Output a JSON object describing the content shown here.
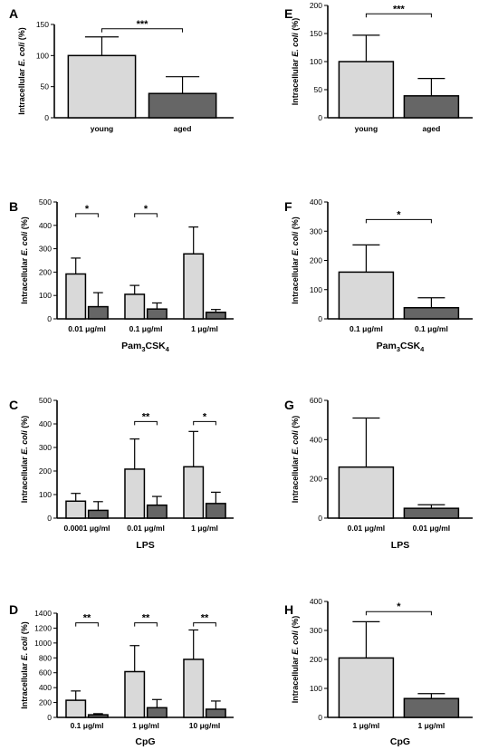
{
  "colors": {
    "young": "#d9d9d9",
    "aged": "#666666",
    "axis": "#000000"
  },
  "chart_data": [
    {
      "panel": "A",
      "type": "bar",
      "ylabel": "Intracellular E. coli (%)",
      "ylim": [
        0,
        150
      ],
      "yticks": [
        0,
        50,
        100,
        150
      ],
      "categories": [
        "young",
        "aged"
      ],
      "xlabel": "",
      "bars": [
        {
          "v": 100,
          "e": 30,
          "c": "young"
        },
        {
          "v": 39,
          "e": 27,
          "c": "aged"
        }
      ],
      "annotations": [
        {
          "from": 0,
          "to": 1,
          "label": "***"
        }
      ]
    },
    {
      "panel": "E",
      "type": "bar",
      "ylabel": "Intracellular E. coli (%)",
      "ylim": [
        0,
        200
      ],
      "yticks": [
        0,
        50,
        100,
        150,
        200
      ],
      "categories": [
        "young",
        "aged"
      ],
      "xlabel": "",
      "bars": [
        {
          "v": 100,
          "e": 47,
          "c": "young"
        },
        {
          "v": 39,
          "e": 31,
          "c": "aged"
        }
      ],
      "annotations": [
        {
          "from": 0,
          "to": 1,
          "label": "***"
        }
      ]
    },
    {
      "panel": "B",
      "type": "bar",
      "ylabel": "Intracellular E. coli (%)",
      "ylim": [
        0,
        500
      ],
      "yticks": [
        0,
        100,
        200,
        300,
        400,
        500
      ],
      "categories": [
        "0.01 μg/ml",
        "0.1 μg/ml",
        "1 μg/ml"
      ],
      "xlabel": "Pam",
      "xlabel_sub": "3",
      "xlabel_tail": "CSK",
      "xlabel_sub2": "4",
      "bars": [
        {
          "v": 192,
          "e": 68,
          "c": "young"
        },
        {
          "v": 52,
          "e": 60,
          "c": "aged"
        },
        {
          "v": 105,
          "e": 38,
          "c": "young"
        },
        {
          "v": 42,
          "e": 26,
          "c": "aged"
        },
        {
          "v": 278,
          "e": 115,
          "c": "young"
        },
        {
          "v": 28,
          "e": 12,
          "c": "aged"
        }
      ],
      "annotations": [
        {
          "from": 0,
          "to": 1,
          "label": "*"
        },
        {
          "from": 2,
          "to": 3,
          "label": "*"
        }
      ]
    },
    {
      "panel": "F",
      "type": "bar",
      "ylabel": "Intracellular E. coli (%)",
      "ylim": [
        0,
        400
      ],
      "yticks": [
        0,
        100,
        200,
        300,
        400
      ],
      "categories": [
        "0.1 μg/ml",
        "0.1 μg/ml"
      ],
      "xlabel": "Pam",
      "xlabel_sub": "3",
      "xlabel_tail": "CSK",
      "xlabel_sub2": "4",
      "bars": [
        {
          "v": 160,
          "e": 93,
          "c": "young"
        },
        {
          "v": 38,
          "e": 34,
          "c": "aged"
        }
      ],
      "annotations": [
        {
          "from": 0,
          "to": 1,
          "label": "*"
        }
      ]
    },
    {
      "panel": "C",
      "type": "bar",
      "ylabel": "Intracellular E. coli (%)",
      "ylim": [
        0,
        500
      ],
      "yticks": [
        0,
        100,
        200,
        300,
        400,
        500
      ],
      "categories": [
        "0.0001 μg/ml",
        "0.01 μg/ml",
        "1 μg/ml"
      ],
      "xlabel": "LPS",
      "bars": [
        {
          "v": 72,
          "e": 33,
          "c": "young"
        },
        {
          "v": 33,
          "e": 37,
          "c": "aged"
        },
        {
          "v": 208,
          "e": 128,
          "c": "young"
        },
        {
          "v": 55,
          "e": 37,
          "c": "aged"
        },
        {
          "v": 218,
          "e": 150,
          "c": "young"
        },
        {
          "v": 62,
          "e": 48,
          "c": "aged"
        }
      ],
      "annotations": [
        {
          "from": 2,
          "to": 3,
          "label": "**"
        },
        {
          "from": 4,
          "to": 5,
          "label": "*"
        }
      ]
    },
    {
      "panel": "G",
      "type": "bar",
      "ylabel": "Intracellular E. coli (%)",
      "ylim": [
        0,
        600
      ],
      "yticks": [
        0,
        200,
        400,
        600
      ],
      "categories": [
        "0.01 μg/ml",
        "0.01 μg/ml"
      ],
      "xlabel": "LPS",
      "bars": [
        {
          "v": 260,
          "e": 250,
          "c": "young"
        },
        {
          "v": 50,
          "e": 18,
          "c": "aged"
        }
      ],
      "annotations": []
    },
    {
      "panel": "D",
      "type": "bar",
      "ylabel": "Intracellular E. coli (%)",
      "ylim": [
        0,
        1400
      ],
      "yticks": [
        0,
        200,
        400,
        600,
        800,
        1000,
        1200,
        1400
      ],
      "categories": [
        "0.1 μg/ml",
        "1 μg/ml",
        "10 μg/ml"
      ],
      "xlabel": "CpG",
      "bars": [
        {
          "v": 230,
          "e": 125,
          "c": "young"
        },
        {
          "v": 35,
          "e": 15,
          "c": "aged"
        },
        {
          "v": 615,
          "e": 350,
          "c": "young"
        },
        {
          "v": 130,
          "e": 110,
          "c": "aged"
        },
        {
          "v": 780,
          "e": 395,
          "c": "young"
        },
        {
          "v": 110,
          "e": 110,
          "c": "aged"
        }
      ],
      "annotations": [
        {
          "from": 0,
          "to": 1,
          "label": "**"
        },
        {
          "from": 2,
          "to": 3,
          "label": "**"
        },
        {
          "from": 4,
          "to": 5,
          "label": "**"
        }
      ]
    },
    {
      "panel": "H",
      "type": "bar",
      "ylabel": "Intracellular E. coli (%)",
      "ylim": [
        0,
        400
      ],
      "yticks": [
        0,
        100,
        200,
        300,
        400
      ],
      "categories": [
        "1 μg/ml",
        "1 μg/ml"
      ],
      "xlabel": "CpG",
      "bars": [
        {
          "v": 205,
          "e": 125,
          "c": "young"
        },
        {
          "v": 65,
          "e": 17,
          "c": "aged"
        }
      ],
      "annotations": [
        {
          "from": 0,
          "to": 1,
          "label": "*"
        }
      ]
    }
  ]
}
